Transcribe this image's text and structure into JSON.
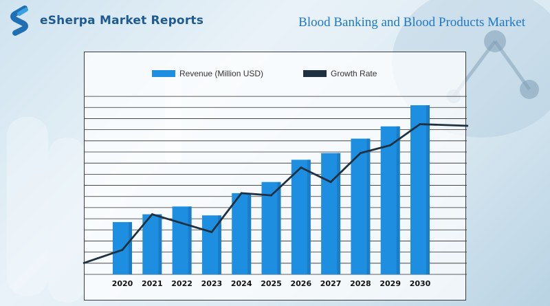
{
  "brand": {
    "name": "eSherpa Market Reports",
    "logo_icon": "esherpa-s-logo-icon"
  },
  "report": {
    "title": "Blood Banking and Blood Products Market"
  },
  "colors": {
    "bar": "#1e8fe0",
    "bar_dark": "#1670b8",
    "line": "#1f3140",
    "grid": "#2b2b2b",
    "brand": "#1f5b92"
  },
  "chart_data": {
    "type": "bar",
    "title": "",
    "xlabel": "",
    "ylabel": "",
    "categories": [
      "2020",
      "2021",
      "2022",
      "2023",
      "2024",
      "2025",
      "2026",
      "2027",
      "2028",
      "2029",
      "2030"
    ],
    "series": [
      {
        "name": "Revenue (Million USD)",
        "type": "bar",
        "values": [
          4.7,
          5.4,
          6.1,
          5.3,
          7.3,
          8.3,
          10.3,
          10.9,
          12.2,
          13.3,
          15.2
        ]
      },
      {
        "name": "Growth Rate",
        "type": "line",
        "values": [
          2.2,
          5.4,
          4.6,
          3.8,
          7.3,
          7.1,
          9.6,
          8.3,
          10.9,
          11.6,
          13.5
        ]
      }
    ],
    "ylim": [
      0,
      16.5
    ],
    "grid": true,
    "legend": "top-left"
  }
}
